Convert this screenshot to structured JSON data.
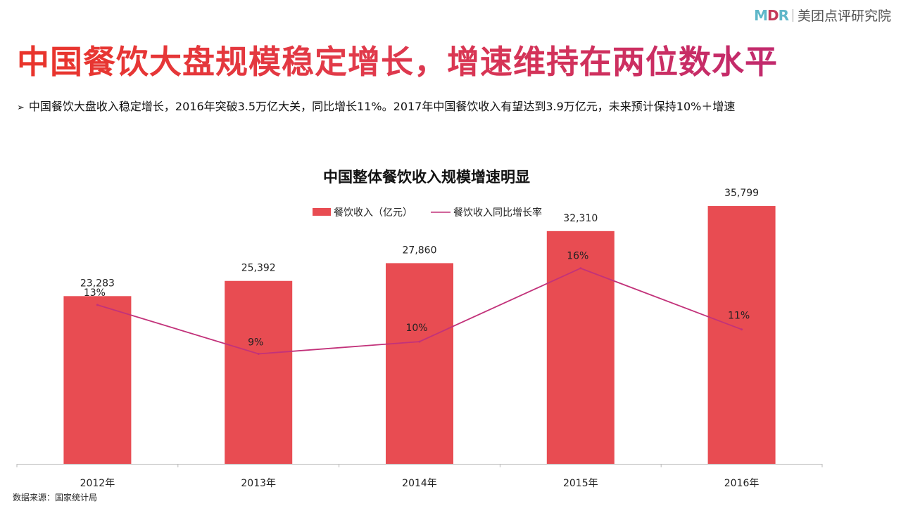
{
  "brand": {
    "logo_m": "M",
    "logo_d": "D",
    "logo_r": "R",
    "name": "美团点评研究院"
  },
  "main_title": "中国餐饮大盘规模稳定增长，增速维持在两位数水平",
  "bullet": "中国餐饮大盘收入稳定增长，2016年突破3.5万亿大关，同比增长11%。2017年中国餐饮收入有望达到3.9万亿元，未来预计保持10%＋增速",
  "source": "数据来源：国家统计局",
  "colors": {
    "bar": "#e84c52",
    "line": "#c2327a"
  },
  "chart_data": {
    "type": "bar+line",
    "title": "中国整体餐饮收入规模增速明显",
    "legend_position": "top-center",
    "grid": false,
    "categories": [
      "2012年",
      "2013年",
      "2014年",
      "2015年",
      "2016年"
    ],
    "series": [
      {
        "name": "餐饮收入（亿元）",
        "type": "bar",
        "values": [
          23283,
          25392,
          27860,
          32310,
          35799
        ],
        "labels": [
          "23,283",
          "25,392",
          "27,860",
          "32,310",
          "35,799"
        ],
        "ylim": [
          0,
          40000
        ]
      },
      {
        "name": "餐饮收入同比增长率",
        "type": "line",
        "values": [
          13,
          9,
          10,
          16,
          11
        ],
        "labels": [
          "13%",
          "9%",
          "10%",
          "16%",
          "11%"
        ],
        "ylim": [
          0,
          23
        ]
      }
    ]
  }
}
